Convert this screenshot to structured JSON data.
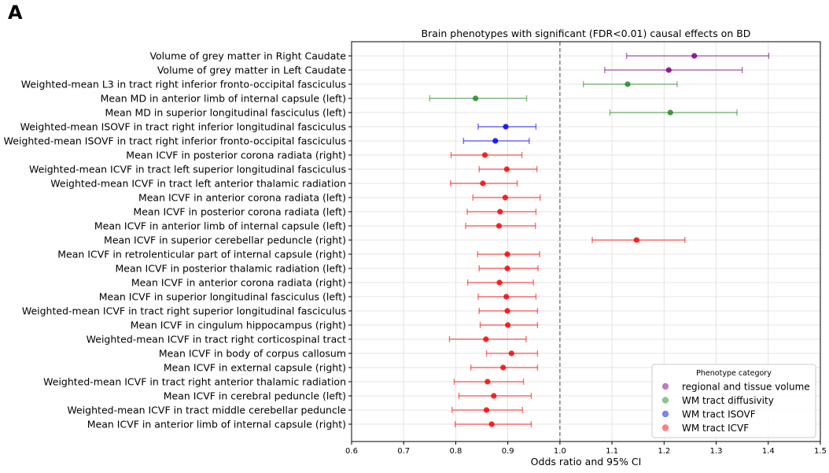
{
  "panel_label": "A",
  "chart_data": {
    "type": "forest",
    "title": "Brain phenotypes with significant (FDR<0.01) causal effects on BD",
    "xlabel": "Odds ratio and 95% CI",
    "ylabel": "",
    "xlim": [
      0.6,
      1.5
    ],
    "xticks": [
      "0.6",
      "0.7",
      "0.8",
      "0.9",
      "1.0",
      "1.1",
      "1.2",
      "1.3",
      "1.4",
      "1.5"
    ],
    "reference_line": 1.0,
    "grid": true,
    "legend": {
      "title": "Phenotype category",
      "placement": "lower-right",
      "entries": [
        {
          "label": "regional and tissue volume",
          "color": "#800080"
        },
        {
          "label": "WM tract diffusivity",
          "color": "#228B22"
        },
        {
          "label": "WM tract ISOVF",
          "color": "#0000FF"
        },
        {
          "label": "WM tract ICVF",
          "color": "#FF0000"
        }
      ]
    },
    "category_colors": {
      "volume": "#800080",
      "diffusivity": "#228B22",
      "isovf": "#0000FF",
      "icvf": "#FF0000"
    },
    "rows": [
      {
        "label": "Volume of grey matter in Right Caudate",
        "category": "volume",
        "or": 1.258,
        "lo": 1.128,
        "hi": 1.401
      },
      {
        "label": "Volume of grey matter in Left Caudate",
        "category": "volume",
        "or": 1.209,
        "lo": 1.086,
        "hi": 1.35
      },
      {
        "label": "Weighted-mean L3 in tract right inferior fronto-occipital fasciculus",
        "category": "diffusivity",
        "or": 1.13,
        "lo": 1.045,
        "hi": 1.225
      },
      {
        "label": "Mean MD in anterior limb of internal capsule (left)",
        "category": "diffusivity",
        "or": 0.838,
        "lo": 0.75,
        "hi": 0.936
      },
      {
        "label": "Mean MD in superior longitudinal fasciculus (left)",
        "category": "diffusivity",
        "or": 1.212,
        "lo": 1.096,
        "hi": 1.34
      },
      {
        "label": "Weighted-mean ISOVF in tract right inferior longitudinal fasciculus",
        "category": "isovf",
        "or": 0.896,
        "lo": 0.843,
        "hi": 0.954
      },
      {
        "label": "Weighted-mean ISOVF in tract right inferior fronto-occipital fasciculus",
        "category": "isovf",
        "or": 0.876,
        "lo": 0.815,
        "hi": 0.941
      },
      {
        "label": "Mean ICVF in posterior corona radiata (right)",
        "category": "icvf",
        "or": 0.856,
        "lo": 0.791,
        "hi": 0.927
      },
      {
        "label": "Weighted-mean ICVF in tract left superior longitudinal fasciculus",
        "category": "icvf",
        "or": 0.898,
        "lo": 0.845,
        "hi": 0.956
      },
      {
        "label": "Weighted-mean ICVF in tract left anterior thalamic radiation",
        "category": "icvf",
        "or": 0.852,
        "lo": 0.79,
        "hi": 0.918
      },
      {
        "label": "Mean ICVF in anterior corona radiata (left)",
        "category": "icvf",
        "or": 0.895,
        "lo": 0.833,
        "hi": 0.962
      },
      {
        "label": "Mean ICVF in posterior corona radiata (left)",
        "category": "icvf",
        "or": 0.885,
        "lo": 0.822,
        "hi": 0.954
      },
      {
        "label": "Mean ICVF in anterior limb of internal capsule (left)",
        "category": "icvf",
        "or": 0.883,
        "lo": 0.819,
        "hi": 0.953
      },
      {
        "label": "Mean ICVF in superior cerebellar peduncle (right)",
        "category": "icvf",
        "or": 1.147,
        "lo": 1.062,
        "hi": 1.24
      },
      {
        "label": "Mean ICVF in retrolenticular part of internal capsule (right)",
        "category": "icvf",
        "or": 0.899,
        "lo": 0.842,
        "hi": 0.961
      },
      {
        "label": "Mean ICVF in posterior thalamic radiation (left)",
        "category": "icvf",
        "or": 0.899,
        "lo": 0.845,
        "hi": 0.958
      },
      {
        "label": "Mean ICVF in anterior corona radiata (right)",
        "category": "icvf",
        "or": 0.884,
        "lo": 0.823,
        "hi": 0.949
      },
      {
        "label": "Mean ICVF in superior longitudinal fasciculus (left)",
        "category": "icvf",
        "or": 0.897,
        "lo": 0.843,
        "hi": 0.954
      },
      {
        "label": "Weighted-mean ICVF in tract right superior longitudinal fasciculus",
        "category": "icvf",
        "or": 0.899,
        "lo": 0.845,
        "hi": 0.957
      },
      {
        "label": "Mean ICVF in cingulum hippocampus (right)",
        "category": "icvf",
        "or": 0.9,
        "lo": 0.847,
        "hi": 0.957
      },
      {
        "label": "Weighted-mean ICVF in tract right corticospinal tract",
        "category": "icvf",
        "or": 0.858,
        "lo": 0.788,
        "hi": 0.935
      },
      {
        "label": "Mean ICVF in body of corpus callosum",
        "category": "icvf",
        "or": 0.907,
        "lo": 0.859,
        "hi": 0.957
      },
      {
        "label": "Mean ICVF in external capsule (right)",
        "category": "icvf",
        "or": 0.891,
        "lo": 0.829,
        "hi": 0.957
      },
      {
        "label": "Weighted-mean ICVF in tract right anterior thalamic radiation",
        "category": "icvf",
        "or": 0.861,
        "lo": 0.797,
        "hi": 0.93
      },
      {
        "label": "Mean ICVF in cerebral peduncle (left)",
        "category": "icvf",
        "or": 0.873,
        "lo": 0.806,
        "hi": 0.945
      },
      {
        "label": "Weighted-mean ICVF in tract middle cerebellar peduncle",
        "category": "icvf",
        "or": 0.859,
        "lo": 0.793,
        "hi": 0.928
      },
      {
        "label": "Mean ICVF in anterior limb of internal capsule (right)",
        "category": "icvf",
        "or": 0.869,
        "lo": 0.799,
        "hi": 0.945
      }
    ]
  }
}
